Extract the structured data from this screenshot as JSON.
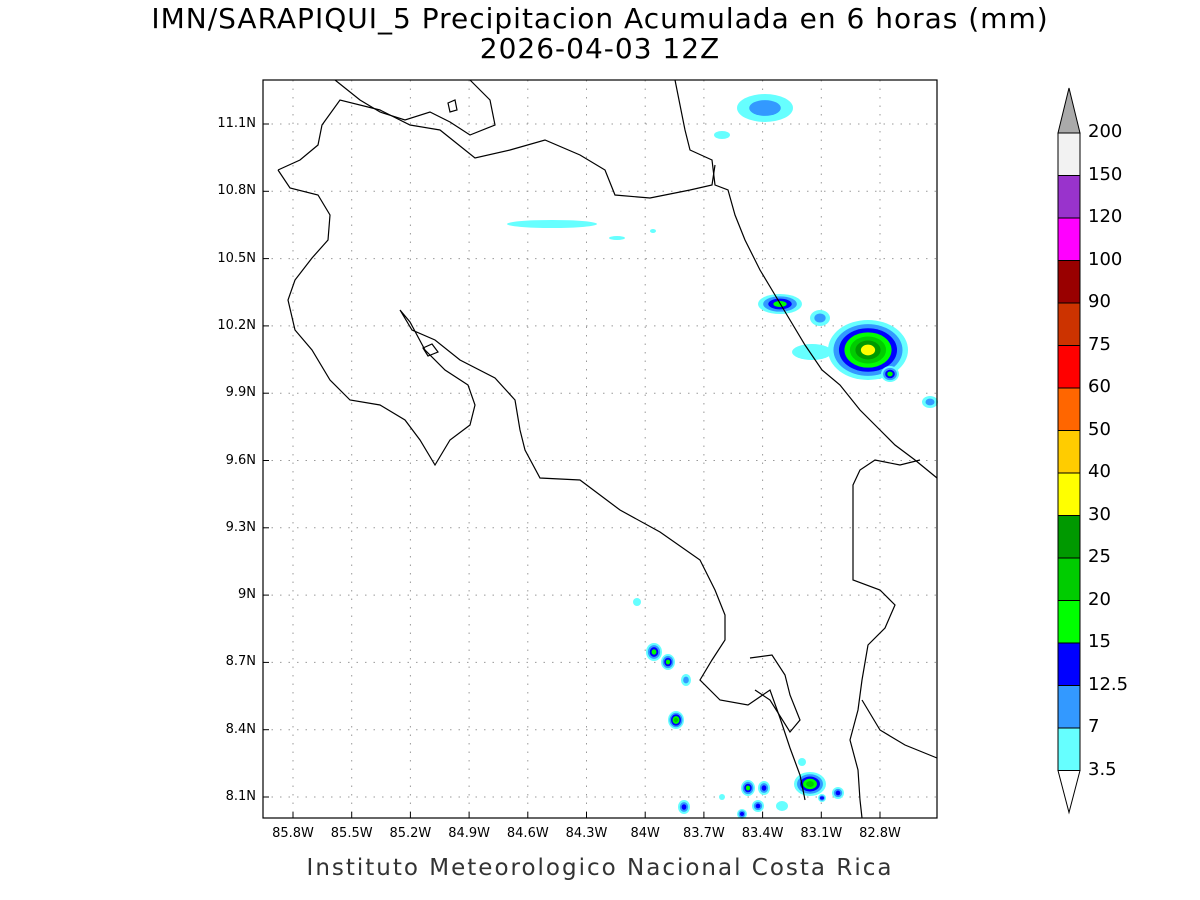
{
  "title": "IMN/SARAPIQUI_5 Precipitacion Acumulada en 6 horas (mm)",
  "subtitle": "2026-04-03 12Z",
  "footer": "Instituto Meteorologico Nacional Costa Rica",
  "lat_labels": [
    "11.1N",
    "10.8N",
    "10.5N",
    "10.2N",
    "9.9N",
    "9.6N",
    "9.3N",
    "9N",
    "8.7N",
    "8.4N",
    "8.1N"
  ],
  "lon_labels": [
    "85.8W",
    "85.5W",
    "85.2W",
    "84.9W",
    "84.6W",
    "84.3W",
    "84W",
    "83.7W",
    "83.4W",
    "83.1W",
    "82.8W"
  ],
  "colorbar": {
    "levels": [
      "3.5",
      "7",
      "12.5",
      "15",
      "20",
      "25",
      "30",
      "40",
      "50",
      "60",
      "75",
      "90",
      "100",
      "120",
      "150",
      "200"
    ],
    "colors": [
      "#66ffff",
      "#3399ff",
      "#0000ff",
      "#00ff00",
      "#00cc00",
      "#009900",
      "#ffff00",
      "#ffcc00",
      "#ff6600",
      "#ff0000",
      "#cc3300",
      "#990000",
      "#ff00ff",
      "#9933cc",
      "#f2f2f2"
    ],
    "over_color": "#aaaaaa",
    "under_color": "#ffffff"
  }
}
